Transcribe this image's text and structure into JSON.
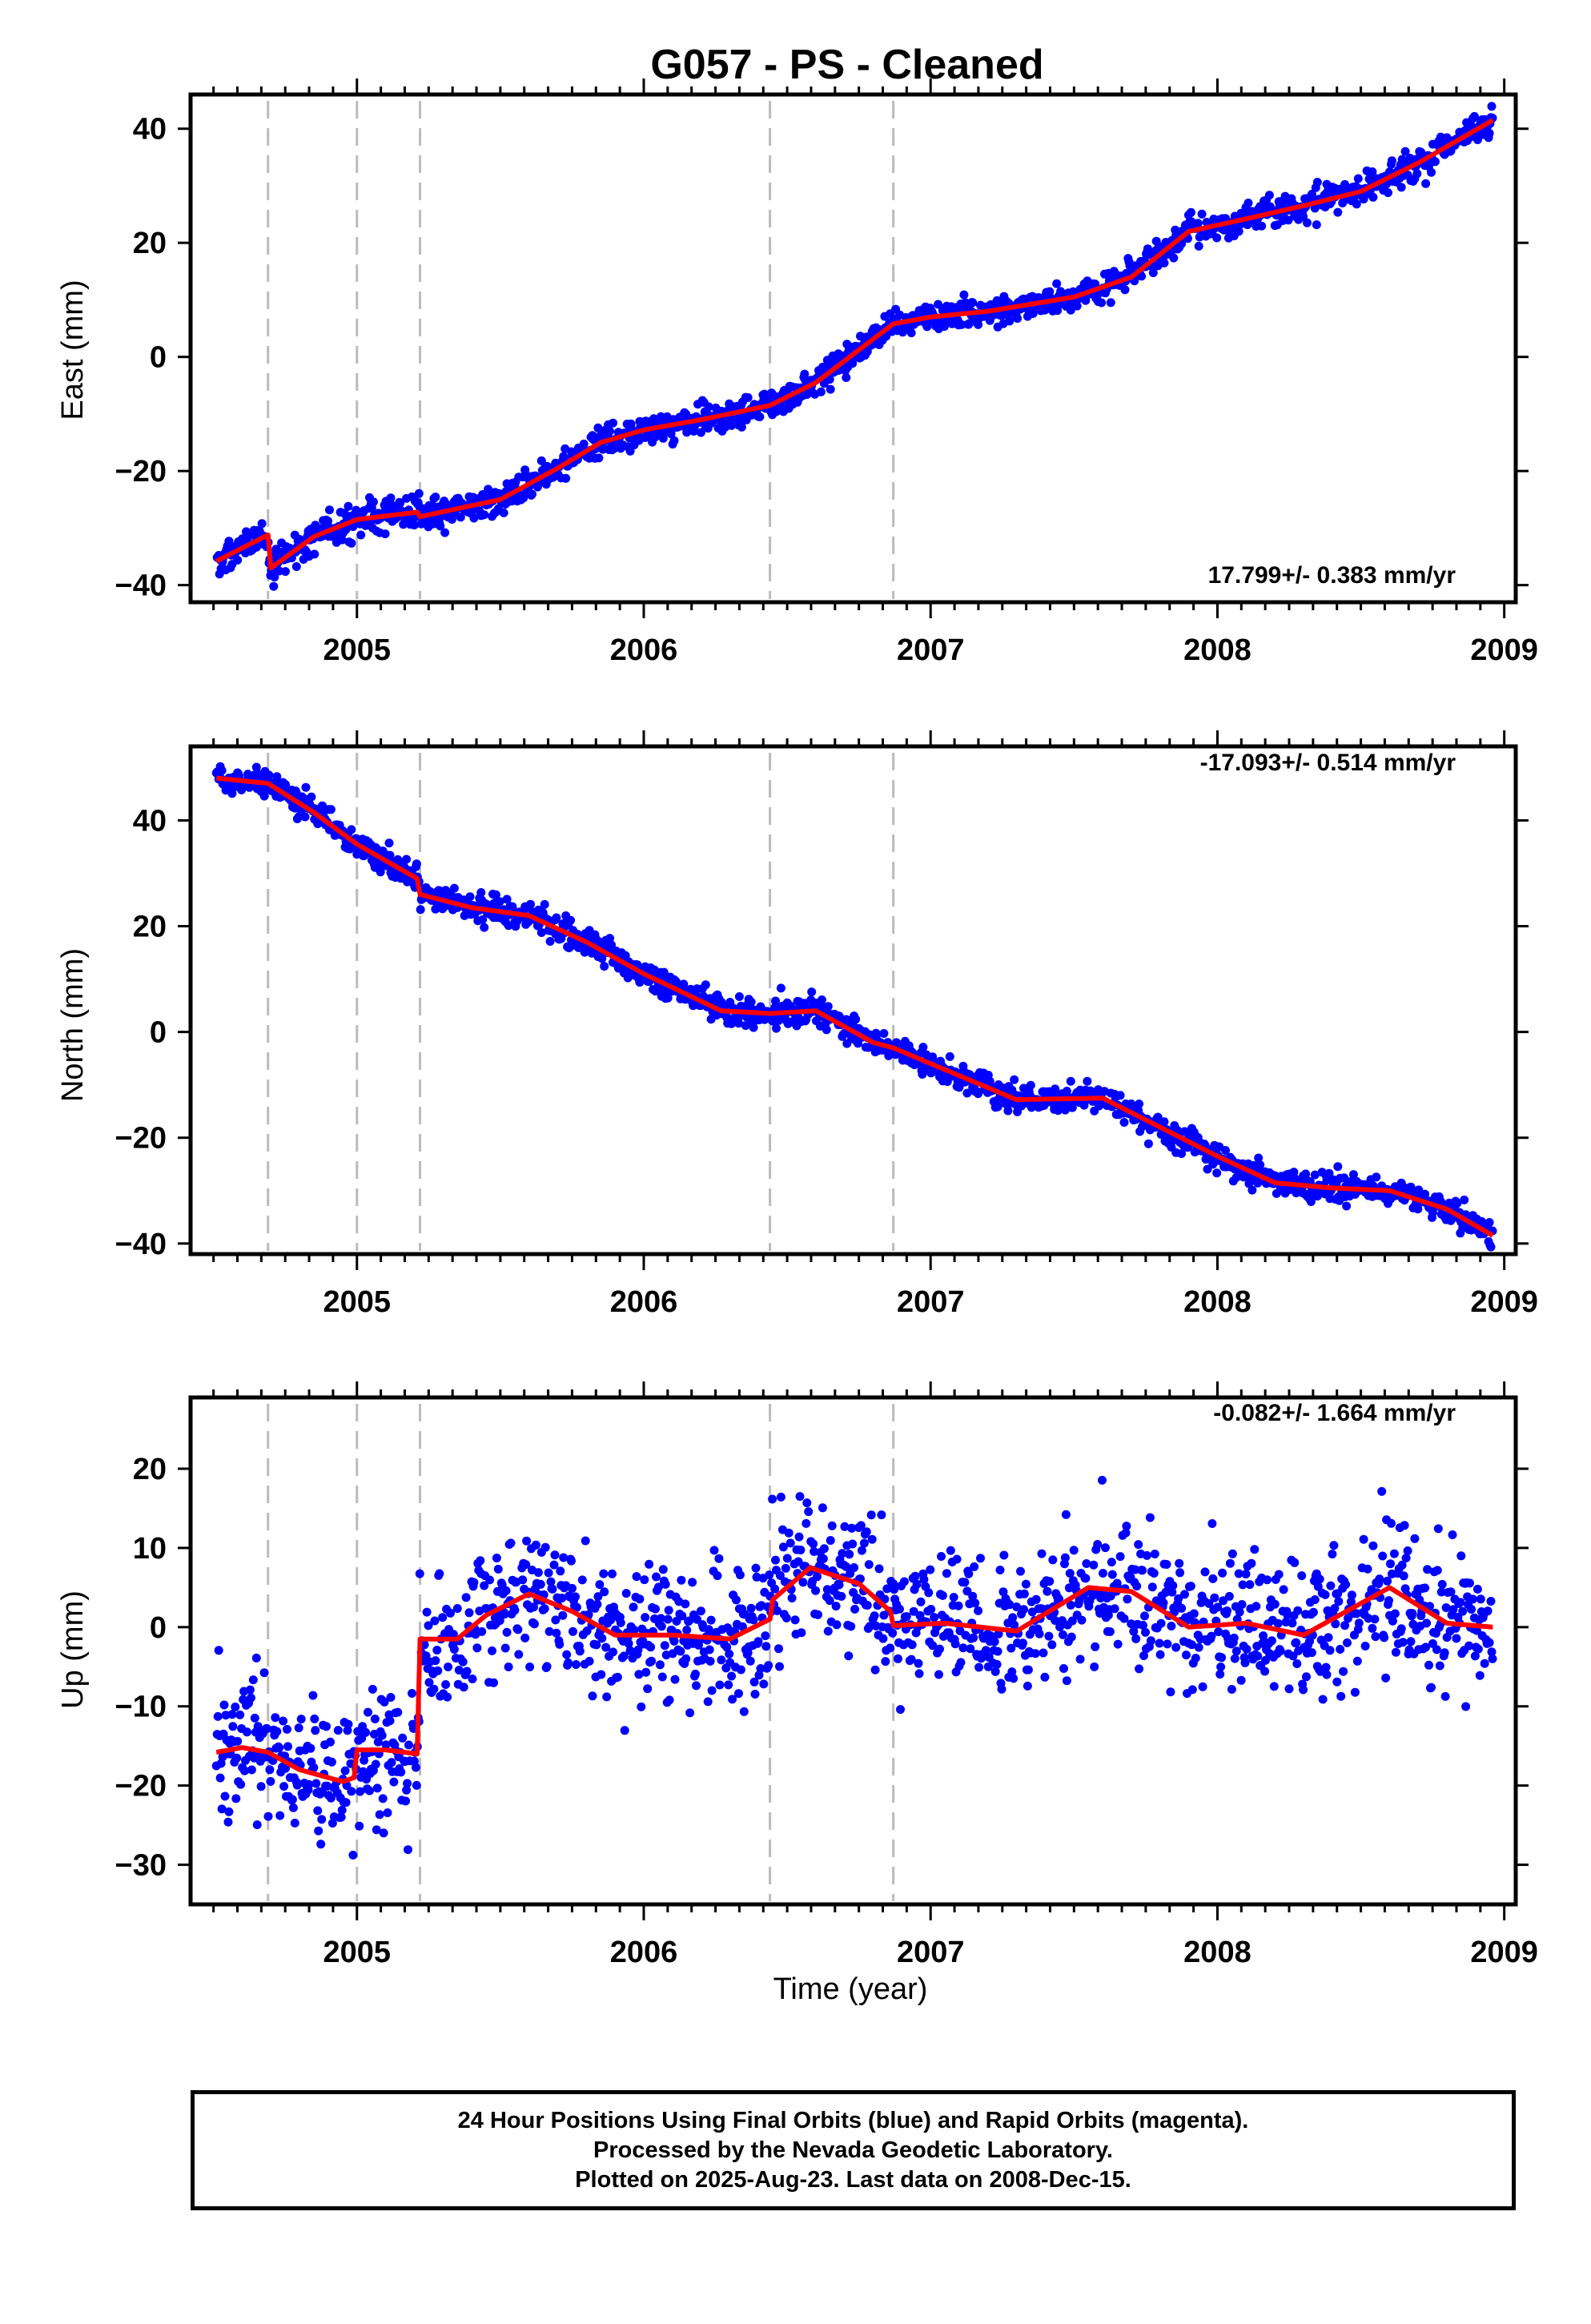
{
  "title": "G057  - PS - Cleaned",
  "x_axis_title": "Time (year)",
  "footer": {
    "line1": "24 Hour Positions Using Final Orbits (blue) and Rapid Orbits (magenta).",
    "line2": "Processed by the Nevada Geodetic Laboratory.",
    "line3": "Plotted on 2025-Aug-23. Last data on 2008-Dec-15."
  },
  "colors": {
    "points": "#0000ff",
    "model": "#ff0000",
    "event_lines": "#bbbbbb"
  },
  "chart_data": [
    {
      "type": "scatter",
      "component": "east",
      "ylabel": "East (mm)",
      "xlim": [
        2004.42,
        2009.04
      ],
      "ylim": [
        -43,
        46
      ],
      "x_ticks": [
        2005,
        2006,
        2007,
        2008,
        2009
      ],
      "y_ticks": [
        -40,
        -20,
        0,
        20,
        40
      ],
      "rate_text": "17.799+/- 0.383 mm/yr",
      "rate_position": "bottom-right",
      "event_lines_x": [
        2004.69,
        2005.0,
        2005.22,
        2006.44,
        2006.87
      ],
      "data_range": [
        2004.51,
        2008.96
      ],
      "noise_sd_mm": 1.3,
      "model_knots": [
        [
          2004.51,
          -35.8
        ],
        [
          2004.69,
          -31.2
        ],
        [
          2004.7,
          -37.0
        ],
        [
          2004.85,
          -31.5
        ],
        [
          2005.0,
          -28.5
        ],
        [
          2005.21,
          -27.2
        ],
        [
          2005.22,
          -28.0
        ],
        [
          2005.5,
          -25.0
        ],
        [
          2005.7,
          -19.5
        ],
        [
          2005.85,
          -15.0
        ],
        [
          2006.0,
          -12.8
        ],
        [
          2006.2,
          -11.0
        ],
        [
          2006.44,
          -8.5
        ],
        [
          2006.6,
          -4.5
        ],
        [
          2006.87,
          5.8
        ],
        [
          2007.0,
          7.0
        ],
        [
          2007.2,
          8.0
        ],
        [
          2007.5,
          10.5
        ],
        [
          2007.7,
          14.0
        ],
        [
          2007.9,
          22.0
        ],
        [
          2008.1,
          24.2
        ],
        [
          2008.3,
          26.5
        ],
        [
          2008.5,
          29.0
        ],
        [
          2008.7,
          34.0
        ],
        [
          2008.96,
          41.5
        ]
      ]
    },
    {
      "type": "scatter",
      "component": "north",
      "ylabel": "North (mm)",
      "xlim": [
        2004.42,
        2009.04
      ],
      "ylim": [
        -42,
        54
      ],
      "x_ticks": [
        2005,
        2006,
        2007,
        2008,
        2009
      ],
      "y_ticks": [
        -40,
        -20,
        0,
        20,
        40
      ],
      "rate_text": "-17.093+/- 0.514 mm/yr",
      "rate_position": "top-right",
      "event_lines_x": [
        2004.69,
        2005.0,
        2005.22,
        2006.44,
        2006.87
      ],
      "data_range": [
        2004.51,
        2008.96
      ],
      "noise_sd_mm": 1.3,
      "model_knots": [
        [
          2004.51,
          48.0
        ],
        [
          2004.69,
          47.0
        ],
        [
          2004.85,
          41.5
        ],
        [
          2005.0,
          35.5
        ],
        [
          2005.21,
          29.0
        ],
        [
          2005.22,
          26.0
        ],
        [
          2005.4,
          23.5
        ],
        [
          2005.6,
          22.0
        ],
        [
          2005.8,
          17.0
        ],
        [
          2006.0,
          11.0
        ],
        [
          2006.27,
          4.0
        ],
        [
          2006.44,
          3.5
        ],
        [
          2006.6,
          4.0
        ],
        [
          2006.8,
          -2.0
        ],
        [
          2006.87,
          -3.0
        ],
        [
          2007.0,
          -6.0
        ],
        [
          2007.3,
          -12.8
        ],
        [
          2007.6,
          -12.5
        ],
        [
          2007.8,
          -18.0
        ],
        [
          2008.0,
          -23.5
        ],
        [
          2008.2,
          -28.5
        ],
        [
          2008.4,
          -29.5
        ],
        [
          2008.6,
          -30.0
        ],
        [
          2008.8,
          -33.5
        ],
        [
          2008.96,
          -38.5
        ]
      ]
    },
    {
      "type": "scatter",
      "component": "up",
      "ylabel": "Up (mm)",
      "xlim": [
        2004.42,
        2009.04
      ],
      "ylim": [
        -35,
        29
      ],
      "x_ticks": [
        2005,
        2006,
        2007,
        2008,
        2009
      ],
      "y_ticks": [
        -30,
        -20,
        -10,
        0,
        10,
        20
      ],
      "rate_text": "-0.082+/- 1.664 mm/yr",
      "rate_position": "top-right",
      "event_lines_x": [
        2004.69,
        2005.0,
        2005.22,
        2006.44,
        2006.87
      ],
      "data_range": [
        2004.51,
        2008.96
      ],
      "noise_sd_mm": 4.2,
      "model_knots": [
        [
          2004.51,
          -15.8
        ],
        [
          2004.6,
          -15.2
        ],
        [
          2004.69,
          -15.8
        ],
        [
          2004.8,
          -18.0
        ],
        [
          2004.95,
          -19.5
        ],
        [
          2004.99,
          -19.0
        ],
        [
          2005.0,
          -15.5
        ],
        [
          2005.1,
          -15.5
        ],
        [
          2005.21,
          -16.0
        ],
        [
          2005.22,
          -1.5
        ],
        [
          2005.35,
          -1.5
        ],
        [
          2005.45,
          1.5
        ],
        [
          2005.6,
          4.2
        ],
        [
          2005.75,
          2.0
        ],
        [
          2005.9,
          -1.0
        ],
        [
          2006.1,
          -1.0
        ],
        [
          2006.3,
          -1.5
        ],
        [
          2006.44,
          1.0
        ],
        [
          2006.45,
          3.5
        ],
        [
          2006.58,
          7.5
        ],
        [
          2006.75,
          5.5
        ],
        [
          2006.86,
          2.0
        ],
        [
          2006.87,
          0.2
        ],
        [
          2007.05,
          0.5
        ],
        [
          2007.3,
          -0.5
        ],
        [
          2007.55,
          5.0
        ],
        [
          2007.7,
          4.5
        ],
        [
          2007.9,
          0.0
        ],
        [
          2008.1,
          0.5
        ],
        [
          2008.3,
          -1.0
        ],
        [
          2008.6,
          5.0
        ],
        [
          2008.8,
          0.5
        ],
        [
          2008.96,
          0.0
        ]
      ]
    }
  ]
}
